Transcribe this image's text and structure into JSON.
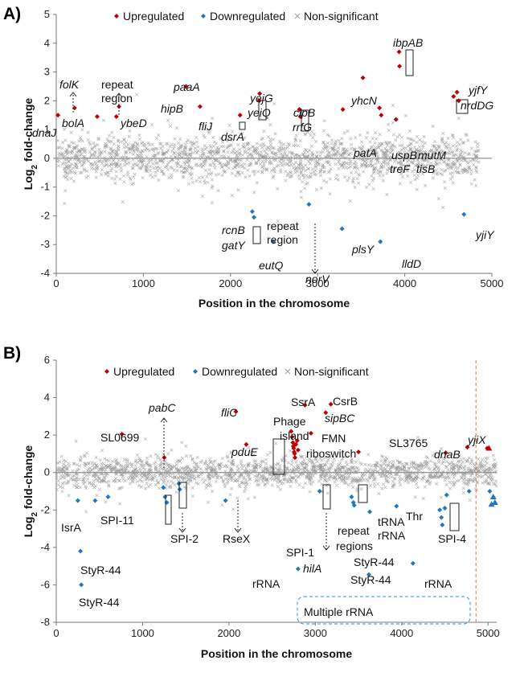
{
  "chart_data": [
    {
      "panel": "A)",
      "type": "scatter",
      "xlabel": "Position in the chromosome",
      "ylabel": "Log2 fold-change",
      "xlim": [
        0,
        5000
      ],
      "ylim": [
        -4,
        5
      ],
      "xticks": [
        0,
        1000,
        2000,
        3000,
        4000,
        5000
      ],
      "yticks": [
        5,
        4,
        3,
        2,
        1,
        0,
        -1,
        -2,
        -3,
        -4
      ],
      "grid": false,
      "legend_placement": "top",
      "legend": [
        {
          "label": "Upregulated",
          "marker": "diamond",
          "color": "#c00000"
        },
        {
          "label": "Downregulated",
          "marker": "diamond",
          "color": "#1f77c4"
        },
        {
          "label": "Non-significant",
          "marker": "x",
          "color": "#9a9a9a"
        }
      ],
      "series": [
        {
          "name": "Upregulated",
          "points": [
            [
              20,
              1.5
            ],
            [
              210,
              1.75
            ],
            [
              470,
              1.45
            ],
            [
              690,
              1.45
            ],
            [
              720,
              1.8
            ],
            [
              1490,
              2.5
            ],
            [
              1650,
              1.8
            ],
            [
              2110,
              1.5
            ],
            [
              2330,
              2.0
            ],
            [
              2335,
              2.25
            ],
            [
              2790,
              1.7
            ],
            [
              2800,
              1.45
            ],
            [
              3290,
              1.7
            ],
            [
              3520,
              2.8
            ],
            [
              3710,
              1.75
            ],
            [
              3730,
              1.5
            ],
            [
              3900,
              1.35
            ],
            [
              3935,
              3.7
            ],
            [
              3940,
              3.2
            ],
            [
              4560,
              2.15
            ],
            [
              4600,
              2.3
            ],
            [
              4620,
              2.0
            ]
          ]
        },
        {
          "name": "Downregulated",
          "points": [
            [
              2250,
              -1.85
            ],
            [
              2270,
              -2.05
            ],
            [
              2490,
              -2.9
            ],
            [
              2900,
              -1.6
            ],
            [
              3280,
              -2.45
            ],
            [
              3720,
              -2.9
            ],
            [
              4680,
              -1.95
            ]
          ]
        },
        {
          "name": "Non-significant",
          "density": "dense",
          "y_range_typical": [
            -1.5,
            1.5
          ],
          "x_range": [
            0,
            4850
          ]
        }
      ],
      "annotations": [
        {
          "text": "folK",
          "italic": true
        },
        {
          "text": "dnaJ",
          "italic": true
        },
        {
          "text": "bolA",
          "italic": true
        },
        {
          "text": "repeat",
          "italic": false
        },
        {
          "text": "region",
          "italic": false
        },
        {
          "text": "ybeD",
          "italic": true
        },
        {
          "text": "paaA",
          "italic": true
        },
        {
          "text": "hipB",
          "italic": true
        },
        {
          "text": "fliJ",
          "italic": true
        },
        {
          "text": "dsrA",
          "italic": true
        },
        {
          "text": "yejG",
          "italic": true
        },
        {
          "text": "yeiQ",
          "italic": true
        },
        {
          "text": "clpB",
          "italic": true
        },
        {
          "text": "rrfG",
          "italic": true
        },
        {
          "text": "yhcN",
          "italic": true
        },
        {
          "text": "ibpAB",
          "italic": true
        },
        {
          "text": "patA",
          "italic": true
        },
        {
          "text": "uspB",
          "italic": true
        },
        {
          "text": "mutM",
          "italic": true
        },
        {
          "text": "treF",
          "italic": true
        },
        {
          "text": "tisB",
          "italic": true
        },
        {
          "text": "yjfY",
          "italic": true
        },
        {
          "text": "nrdDG",
          "italic": true
        },
        {
          "text": "rcnB",
          "italic": true
        },
        {
          "text": "gatY",
          "italic": true
        },
        {
          "text": "repeat",
          "italic": false
        },
        {
          "text": "region",
          "italic": false
        },
        {
          "text": "eutQ",
          "italic": true
        },
        {
          "text": "norV",
          "italic": true
        },
        {
          "text": "plsY",
          "italic": true
        },
        {
          "text": "lldD",
          "italic": true
        },
        {
          "text": "yjiY",
          "italic": true
        }
      ]
    },
    {
      "panel": "B)",
      "type": "scatter",
      "xlabel": "Position in the chromosome",
      "ylabel": "Log2 fold-change",
      "xlim": [
        0,
        5100
      ],
      "ylim": [
        -8,
        6
      ],
      "xticks": [
        0,
        1000,
        2000,
        3000,
        4000,
        5000
      ],
      "yticks": [
        6,
        4,
        2,
        0,
        -2,
        -4,
        -6,
        -8
      ],
      "grid": false,
      "legend_placement": "top",
      "legend": [
        {
          "label": "Upregulated",
          "marker": "diamond",
          "color": "#c00000"
        },
        {
          "label": "Downregulated",
          "marker": "diamond",
          "color": "#1f77c4"
        },
        {
          "label": "Non-significant",
          "marker": "x",
          "color": "#9a9a9a"
        }
      ],
      "vertical_line_x": 4860,
      "series": [
        {
          "name": "Upregulated",
          "points": [
            [
              760,
              2.05
            ],
            [
              1250,
              0.8
            ],
            [
              2080,
              3.25
            ],
            [
              2200,
              1.5
            ],
            [
              2720,
              2.2
            ],
            [
              2730,
              1.9
            ],
            [
              2740,
              1.6
            ],
            [
              2745,
              1.4
            ],
            [
              2750,
              1.3
            ],
            [
              2755,
              1.1
            ],
            [
              2760,
              1.0
            ],
            [
              2765,
              0.8
            ],
            [
              2775,
              1.5
            ],
            [
              2790,
              1.7
            ],
            [
              2800,
              1.2
            ],
            [
              2880,
              3.6
            ],
            [
              2950,
              2.1
            ],
            [
              3120,
              3.2
            ],
            [
              3180,
              3.65
            ],
            [
              3500,
              1.1
            ],
            [
              4510,
              1.05
            ],
            [
              4760,
              1.35
            ],
            [
              4990,
              1.3
            ]
          ]
        },
        {
          "name": "Downregulated",
          "points": [
            [
              250,
              -1.5
            ],
            [
              280,
              -4.2
            ],
            [
              290,
              -6.0
            ],
            [
              450,
              -1.5
            ],
            [
              600,
              -1.3
            ],
            [
              1240,
              -0.8
            ],
            [
              1260,
              -1.3
            ],
            [
              1280,
              -1.6
            ],
            [
              1420,
              -0.6
            ],
            [
              1430,
              -0.9
            ],
            [
              1960,
              -1.5
            ],
            [
              2800,
              -5.15
            ],
            [
              3050,
              -1.0
            ],
            [
              3420,
              -1.3
            ],
            [
              3440,
              -1.6
            ],
            [
              3450,
              -1.75
            ],
            [
              3620,
              -5.45
            ],
            [
              3630,
              -2.1
            ],
            [
              3940,
              -1.8
            ],
            [
              4130,
              -4.85
            ],
            [
              4440,
              -2.0
            ],
            [
              4460,
              -2.4
            ],
            [
              4470,
              -2.8
            ],
            [
              4500,
              -1.9
            ],
            [
              4520,
              -1.2
            ],
            [
              4780,
              -1.0
            ],
            [
              5020,
              -1.0
            ]
          ]
        },
        {
          "name": "Non-significant",
          "density": "dense",
          "y_range_typical": [
            -1.2,
            1.2
          ],
          "x_range": [
            0,
            5100
          ]
        }
      ],
      "annotations": [
        {
          "text": "pabC",
          "italic": true
        },
        {
          "text": "SL0699",
          "italic": false
        },
        {
          "text": "fliC",
          "italic": true
        },
        {
          "text": "pduE",
          "italic": true
        },
        {
          "text": "SsrA",
          "italic": false
        },
        {
          "text": "CsrB",
          "italic": false
        },
        {
          "text": "Phage",
          "italic": false
        },
        {
          "text": "island",
          "italic": false
        },
        {
          "text": "sipBC",
          "italic": true
        },
        {
          "text": "FMN",
          "italic": false
        },
        {
          "text": "riboswitch",
          "italic": false
        },
        {
          "text": "SL3765",
          "italic": false
        },
        {
          "text": "yjiX",
          "italic": true
        },
        {
          "text": "dnaB",
          "italic": true
        },
        {
          "text": "IsrA",
          "italic": false
        },
        {
          "text": "SPI-11",
          "italic": false
        },
        {
          "text": "SPI-2",
          "italic": false
        },
        {
          "text": "RseX",
          "italic": false
        },
        {
          "text": "SPI-1",
          "italic": false
        },
        {
          "text": "hilA",
          "italic": true
        },
        {
          "text": "repeat",
          "italic": false
        },
        {
          "text": "regions",
          "italic": false
        },
        {
          "text": "tRNA",
          "italic": false
        },
        {
          "text": "Thr",
          "italic": false
        },
        {
          "text": "rRNA",
          "italic": false
        },
        {
          "text": "SPI-4",
          "italic": false
        },
        {
          "text": "StyR-44",
          "italic": false
        },
        {
          "text": "rRNA",
          "italic": false
        },
        {
          "text": "StyR-44",
          "italic": false
        },
        {
          "text": "StyR-44",
          "italic": false
        },
        {
          "text": "rRNA",
          "italic": false
        },
        {
          "text": "StyR-44",
          "italic": false
        },
        {
          "text": "Multiple rRNA",
          "italic": false
        }
      ]
    }
  ]
}
